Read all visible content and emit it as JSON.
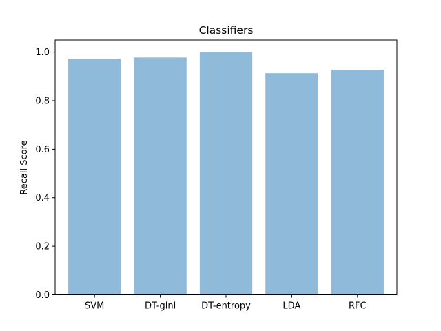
{
  "chart_data": {
    "type": "bar",
    "title": "Classifiers",
    "xlabel": "",
    "ylabel": "Recall Score",
    "categories": [
      "SVM",
      "DT-gini",
      "DT-entropy",
      "LDA",
      "RFC"
    ],
    "values": [
      0.973,
      0.978,
      1.0,
      0.913,
      0.928
    ],
    "ylim": [
      0,
      1.05
    ],
    "yticks": [
      "0.0",
      "0.2",
      "0.4",
      "0.6",
      "0.8",
      "1.0"
    ],
    "bar_color": "#8fbad9",
    "grid": false,
    "legend": "none"
  }
}
